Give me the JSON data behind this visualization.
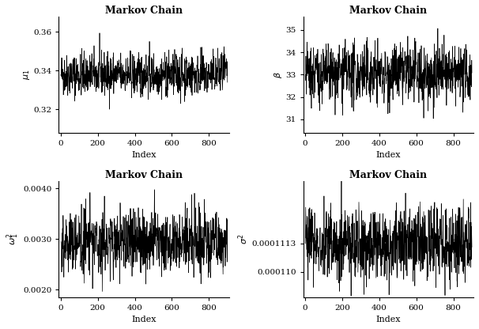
{
  "title": "Markov Chain",
  "xlabel": "Index",
  "n_samples": 900,
  "panels": [
    {
      "ylabel": "$\\mu_1$",
      "mean": 0.338,
      "std": 0.0055,
      "ar_coef": 0.08,
      "ylim": [
        0.308,
        0.368
      ],
      "yticks": [
        0.32,
        0.34,
        0.36
      ],
      "yticklabels": [
        "0.32",
        "0.34",
        "0.36"
      ]
    },
    {
      "ylabel": "$\\beta$",
      "mean": 33.0,
      "std": 0.65,
      "ar_coef": 0.1,
      "ylim": [
        30.4,
        35.6
      ],
      "yticks": [
        31,
        32,
        33,
        34,
        35
      ],
      "yticklabels": [
        "31",
        "32",
        "33",
        "34",
        "35"
      ]
    },
    {
      "ylabel": "$\\omega_1^2$",
      "mean": 0.00295,
      "std": 0.00032,
      "ar_coef": 0.05,
      "ylim": [
        0.00185,
        0.00415
      ],
      "yticks": [
        0.002,
        0.003,
        0.004
      ],
      "yticklabels": [
        "0.0020",
        "0.0030",
        "0.0040"
      ]
    },
    {
      "ylabel": "$\\sigma^2$",
      "mean": 0.0001113,
      "std": 8e-07,
      "ar_coef": 0.05,
      "ylim": [
        0.00010885,
        0.00011415
      ],
      "yticks": [
        0.00011,
        0.0001113
      ],
      "yticklabels": [
        "0.000110",
        "0.0001113"
      ]
    }
  ],
  "line_color": "black",
  "line_width": 0.5,
  "bg_color": "white",
  "seed": 42
}
